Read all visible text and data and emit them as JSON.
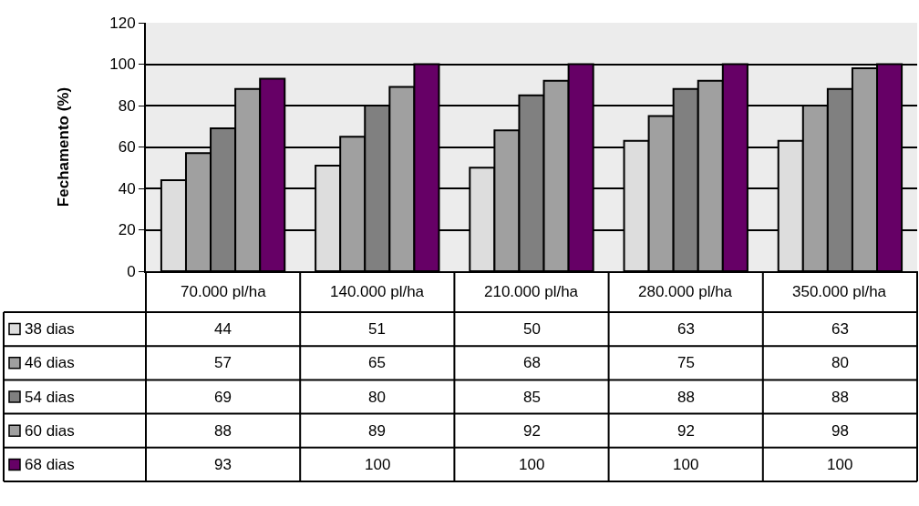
{
  "chart_data": {
    "type": "bar",
    "ylabel": "Fechamento (%)",
    "categories": [
      "70.000 pl/ha",
      "140.000 pl/ha",
      "210.000 pl/ha",
      "280.000 pl/ha",
      "350.000 pl/ha"
    ],
    "series": [
      {
        "name": "38 dias",
        "color": "#dddddd",
        "values": [
          44,
          51,
          50,
          63,
          63
        ]
      },
      {
        "name": "46 dias",
        "color": "#a0a0a0",
        "values": [
          57,
          65,
          68,
          75,
          80
        ]
      },
      {
        "name": "54 dias",
        "color": "#808080",
        "values": [
          69,
          80,
          85,
          88,
          88
        ]
      },
      {
        "name": "60 dias",
        "color": "#a0a0a0",
        "values": [
          88,
          89,
          92,
          92,
          98
        ]
      },
      {
        "name": "68 dias",
        "color": "#660066",
        "values": [
          93,
          100,
          100,
          100,
          100
        ]
      }
    ],
    "ylim": [
      0,
      120
    ],
    "yticks": [
      0,
      20,
      40,
      60,
      80,
      100,
      120
    ],
    "grid": "y",
    "legend": "left",
    "data_labels": true
  }
}
